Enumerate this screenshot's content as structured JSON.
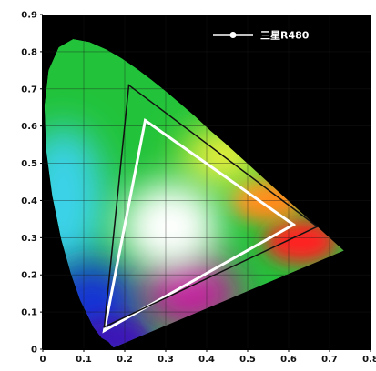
{
  "colors": {
    "background": "#000000",
    "page": "#ffffff",
    "triangle_r480": "#ffffff",
    "triangle_reference": "#111111",
    "tick_text": "#111111"
  },
  "legend": {
    "label": "三星R480"
  },
  "chart_data": {
    "type": "scatter",
    "title": "",
    "xlabel": "",
    "ylabel": "",
    "xlim": [
      0,
      0.8
    ],
    "ylim": [
      0,
      0.9
    ],
    "x_ticks": [
      "0",
      "0.1",
      "0.2",
      "0.3",
      "0.4",
      "0.5",
      "0.6",
      "0.7",
      "0.8"
    ],
    "y_ticks": [
      "0",
      "0.1",
      "0.2",
      "0.3",
      "0.4",
      "0.5",
      "0.6",
      "0.7",
      "0.8",
      "0.9"
    ],
    "grid": true,
    "legend_position": "top-right",
    "spectral_locus": [
      [
        0.174,
        0.005
      ],
      [
        0.172,
        0.005
      ],
      [
        0.168,
        0.01
      ],
      [
        0.16,
        0.02
      ],
      [
        0.144,
        0.03
      ],
      [
        0.124,
        0.058
      ],
      [
        0.091,
        0.133
      ],
      [
        0.069,
        0.201
      ],
      [
        0.045,
        0.295
      ],
      [
        0.023,
        0.413
      ],
      [
        0.008,
        0.538
      ],
      [
        0.004,
        0.655
      ],
      [
        0.014,
        0.75
      ],
      [
        0.039,
        0.812
      ],
      [
        0.074,
        0.834
      ],
      [
        0.114,
        0.826
      ],
      [
        0.155,
        0.806
      ],
      [
        0.193,
        0.782
      ],
      [
        0.23,
        0.754
      ],
      [
        0.266,
        0.724
      ],
      [
        0.302,
        0.692
      ],
      [
        0.337,
        0.659
      ],
      [
        0.373,
        0.625
      ],
      [
        0.408,
        0.589
      ],
      [
        0.444,
        0.555
      ],
      [
        0.479,
        0.52
      ],
      [
        0.512,
        0.487
      ],
      [
        0.544,
        0.455
      ],
      [
        0.575,
        0.424
      ],
      [
        0.603,
        0.396
      ],
      [
        0.627,
        0.372
      ],
      [
        0.648,
        0.351
      ],
      [
        0.666,
        0.334
      ],
      [
        0.68,
        0.32
      ],
      [
        0.691,
        0.309
      ],
      [
        0.699,
        0.301
      ],
      [
        0.705,
        0.295
      ],
      [
        0.713,
        0.287
      ],
      [
        0.735,
        0.265
      ]
    ],
    "series": [
      {
        "name": "三星R480",
        "shape": "triangle",
        "points": [
          [
            0.25,
            0.615
          ],
          [
            0.612,
            0.335
          ],
          [
            0.15,
            0.05
          ]
        ]
      },
      {
        "shape": "triangle",
        "points": [
          [
            0.21,
            0.71
          ],
          [
            0.67,
            0.33
          ],
          [
            0.15,
            0.06
          ]
        ]
      }
    ],
    "gamut_colors": {
      "green": "#22c33a",
      "cyan": "#3bd2ea",
      "blue": "#1530d6",
      "violet": "#3a12b8",
      "magenta": "#c21a9c",
      "red": "#ff2020",
      "orange": "#ff8a1c",
      "yellow": "#f3f23a",
      "white": "#ffffff"
    }
  }
}
